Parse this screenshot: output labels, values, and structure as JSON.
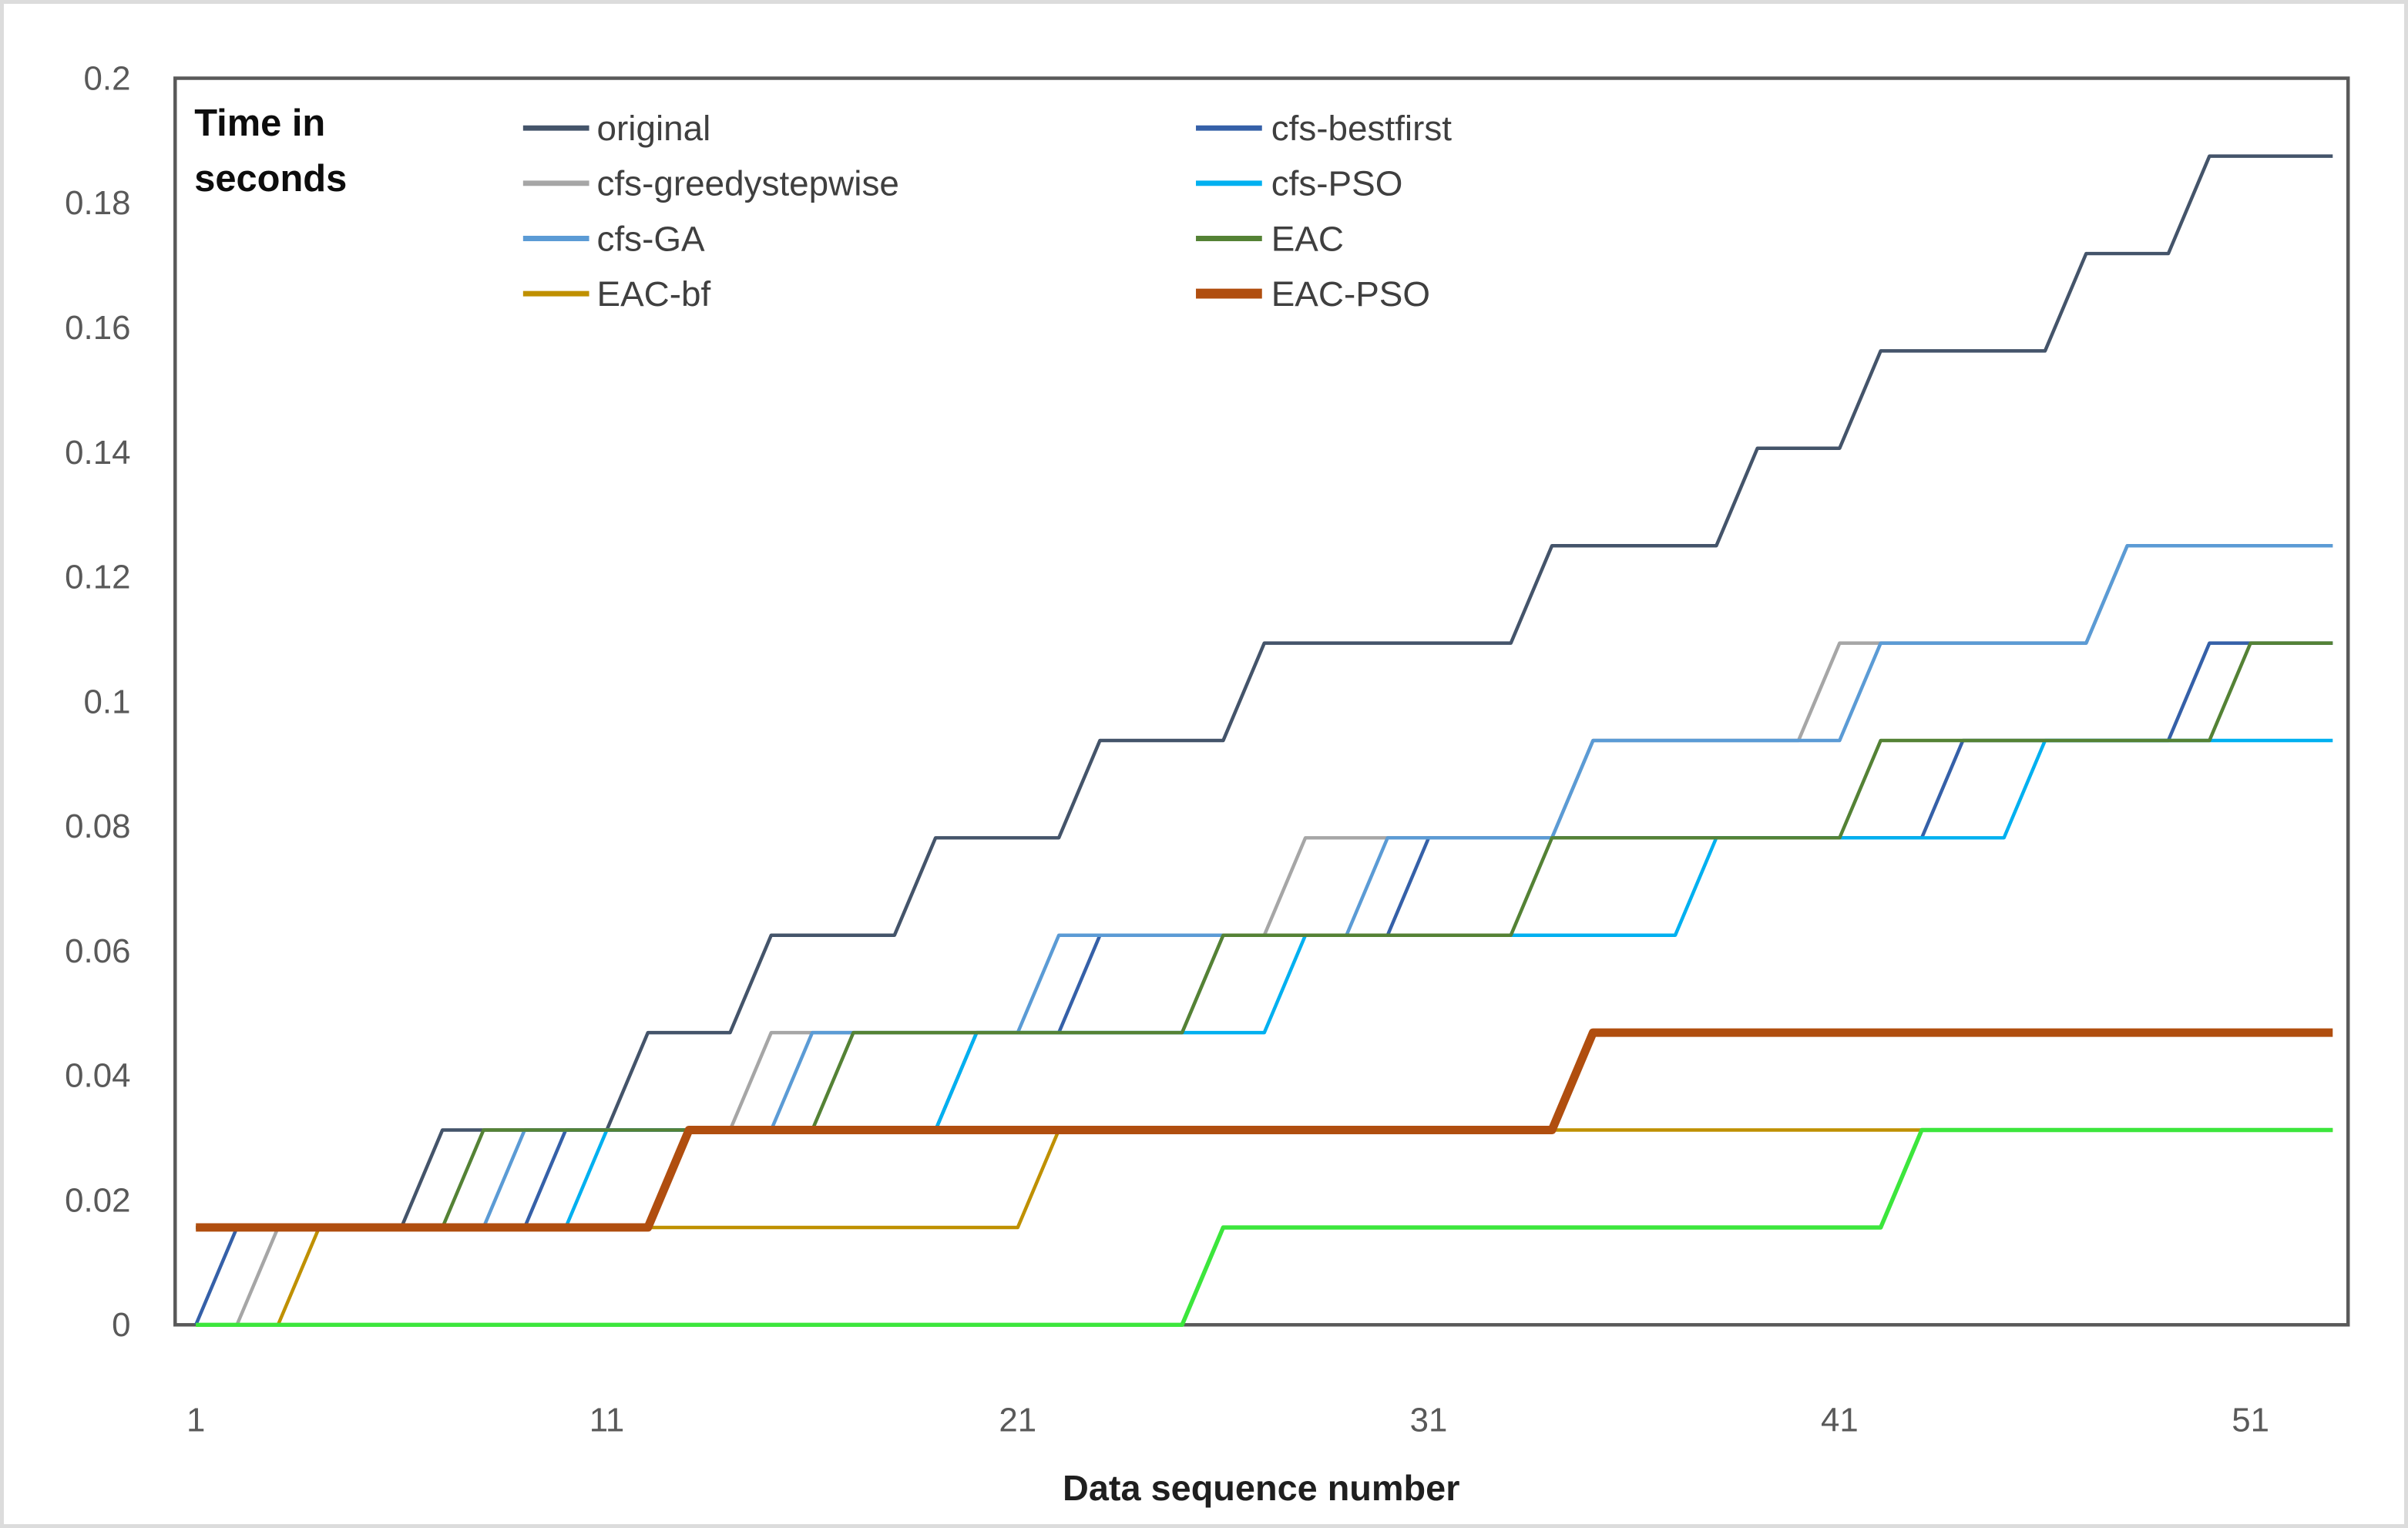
{
  "chart_data": {
    "type": "line",
    "subtype": "stepped-cumulative-time",
    "annotation": {
      "line1": "Time in",
      "line2": "seconds"
    },
    "xlabel": "Data sequence number",
    "ylabel": "",
    "xlim": [
      1,
      53
    ],
    "ylim": [
      0,
      0.2
    ],
    "grid": false,
    "legend_position": "top-left-inside, two columns",
    "x": [
      1,
      2,
      3,
      4,
      5,
      6,
      7,
      8,
      9,
      10,
      11,
      12,
      13,
      14,
      15,
      16,
      17,
      18,
      19,
      20,
      21,
      22,
      23,
      24,
      25,
      26,
      27,
      28,
      29,
      30,
      31,
      32,
      33,
      34,
      35,
      36,
      37,
      38,
      39,
      40,
      41,
      42,
      43,
      44,
      45,
      46,
      47,
      48,
      49,
      50,
      51,
      52,
      53
    ],
    "xticks": [
      {
        "v": 1,
        "label": "1"
      },
      {
        "v": 11,
        "label": "11"
      },
      {
        "v": 21,
        "label": "21"
      },
      {
        "v": 31,
        "label": "31"
      },
      {
        "v": 41,
        "label": "41"
      },
      {
        "v": 51,
        "label": "51"
      }
    ],
    "yticks": [
      {
        "v": 0,
        "label": "0"
      },
      {
        "v": 0.02,
        "label": "0.02"
      },
      {
        "v": 0.04,
        "label": "0.04"
      },
      {
        "v": 0.06,
        "label": "0.06"
      },
      {
        "v": 0.08,
        "label": "0.08"
      },
      {
        "v": 0.1,
        "label": "0.1"
      },
      {
        "v": 0.12,
        "label": "0.12"
      },
      {
        "v": 0.14,
        "label": "0.14"
      },
      {
        "v": 0.16,
        "label": "0.16"
      },
      {
        "v": 0.18,
        "label": "0.18"
      },
      {
        "v": 0.2,
        "label": "0.2"
      }
    ],
    "level_unit_seconds": 0.015625,
    "value_note": "y value of each point = levels[i] * level_unit_seconds (timer-quantized cumulative seconds)",
    "axis_color": "#595959",
    "series": [
      {
        "name": "original",
        "color": "#44546A",
        "stroke_width": 4.5,
        "legend_stroke": 7,
        "in_legend": true,
        "levels": [
          1,
          1,
          1,
          1,
          1,
          1,
          2,
          2,
          2,
          2,
          2,
          3,
          3,
          3,
          4,
          4,
          4,
          4,
          5,
          5,
          5,
          5,
          6,
          6,
          6,
          6,
          7,
          7,
          7,
          7,
          7,
          7,
          7,
          8,
          8,
          8,
          8,
          8,
          9,
          9,
          9,
          10,
          10,
          10,
          10,
          10,
          11,
          11,
          11,
          12,
          12,
          12,
          12
        ]
      },
      {
        "name": "cfs-bestfirst",
        "color": "#3560A8",
        "stroke_width": 4.5,
        "legend_stroke": 7,
        "in_legend": true,
        "levels": [
          0,
          1,
          1,
          1,
          1,
          1,
          1,
          1,
          1,
          2,
          2,
          2,
          2,
          2,
          2,
          2,
          2,
          2,
          2,
          3,
          3,
          3,
          4,
          4,
          4,
          4,
          4,
          4,
          4,
          4,
          5,
          5,
          5,
          5,
          5,
          5,
          5,
          5,
          5,
          5,
          5,
          5,
          5,
          6,
          6,
          6,
          6,
          6,
          6,
          7,
          7,
          7,
          7
        ]
      },
      {
        "name": "cfs-greedystepwise",
        "color": "#A6A6A6",
        "stroke_width": 4.5,
        "legend_stroke": 7,
        "in_legend": true,
        "levels": [
          0,
          0,
          1,
          1,
          1,
          1,
          1,
          1,
          1,
          1,
          1,
          1,
          2,
          2,
          3,
          3,
          3,
          3,
          3,
          3,
          3,
          3,
          3,
          3,
          3,
          4,
          4,
          5,
          5,
          5,
          5,
          5,
          5,
          5,
          6,
          6,
          6,
          6,
          6,
          6,
          7,
          7,
          7,
          7,
          7,
          7,
          7,
          8,
          8,
          8,
          8,
          8,
          8
        ]
      },
      {
        "name": "cfs-PSO",
        "color": "#00B0F0",
        "stroke_width": 4.5,
        "legend_stroke": 7,
        "in_legend": true,
        "levels": [
          1,
          1,
          1,
          1,
          1,
          1,
          1,
          1,
          1,
          1,
          2,
          2,
          2,
          2,
          2,
          2,
          2,
          2,
          2,
          3,
          3,
          3,
          3,
          3,
          3,
          3,
          3,
          4,
          4,
          4,
          4,
          4,
          4,
          4,
          4,
          4,
          4,
          5,
          5,
          5,
          5,
          5,
          5,
          5,
          5,
          6,
          6,
          6,
          6,
          6,
          6,
          6,
          6
        ]
      },
      {
        "name": "cfs-GA",
        "color": "#5B9BD5",
        "stroke_width": 4.5,
        "legend_stroke": 7,
        "in_legend": true,
        "levels": [
          1,
          1,
          1,
          1,
          1,
          1,
          1,
          1,
          2,
          2,
          2,
          2,
          2,
          2,
          2,
          3,
          3,
          3,
          3,
          3,
          3,
          4,
          4,
          4,
          4,
          4,
          4,
          4,
          4,
          5,
          5,
          5,
          5,
          5,
          6,
          6,
          6,
          6,
          6,
          6,
          6,
          7,
          7,
          7,
          7,
          7,
          7,
          8,
          8,
          8,
          8,
          8,
          8
        ]
      },
      {
        "name": "EAC",
        "color": "#548235",
        "stroke_width": 4.5,
        "legend_stroke": 7,
        "in_legend": true,
        "levels": [
          1,
          1,
          1,
          1,
          1,
          1,
          1,
          2,
          2,
          2,
          2,
          2,
          2,
          2,
          2,
          2,
          3,
          3,
          3,
          3,
          3,
          3,
          3,
          3,
          3,
          4,
          4,
          4,
          4,
          4,
          4,
          4,
          4,
          5,
          5,
          5,
          5,
          5,
          5,
          5,
          5,
          6,
          6,
          6,
          6,
          6,
          6,
          6,
          6,
          6,
          7,
          7,
          7
        ]
      },
      {
        "name": "EAC-bf",
        "color": "#BF9000",
        "stroke_width": 4.5,
        "legend_stroke": 7,
        "in_legend": true,
        "levels": [
          0,
          0,
          0,
          1,
          1,
          1,
          1,
          1,
          1,
          1,
          1,
          1,
          1,
          1,
          1,
          1,
          1,
          1,
          1,
          1,
          1,
          2,
          2,
          2,
          2,
          2,
          2,
          2,
          2,
          2,
          2,
          2,
          2,
          2,
          2,
          2,
          2,
          2,
          2,
          2,
          2,
          2,
          2,
          2,
          2,
          2,
          2,
          2,
          2,
          2,
          2,
          2,
          2
        ]
      },
      {
        "name": "EAC-PSO",
        "color": "#B04E0F",
        "stroke_width": 11,
        "legend_stroke": 13,
        "in_legend": true,
        "levels": [
          1,
          1,
          1,
          1,
          1,
          1,
          1,
          1,
          1,
          1,
          1,
          1,
          2,
          2,
          2,
          2,
          2,
          2,
          2,
          2,
          2,
          2,
          2,
          2,
          2,
          2,
          2,
          2,
          2,
          2,
          2,
          2,
          2,
          2,
          3,
          3,
          3,
          3,
          3,
          3,
          3,
          3,
          3,
          3,
          3,
          3,
          3,
          3,
          3,
          3,
          3,
          3,
          3
        ]
      },
      {
        "name": "unlabeled-green",
        "color": "#3CE63C",
        "stroke_width": 5.5,
        "legend_stroke": 7,
        "in_legend": false,
        "levels": [
          0,
          0,
          0,
          0,
          0,
          0,
          0,
          0,
          0,
          0,
          0,
          0,
          0,
          0,
          0,
          0,
          0,
          0,
          0,
          0,
          0,
          0,
          0,
          0,
          0,
          1,
          1,
          1,
          1,
          1,
          1,
          1,
          1,
          1,
          1,
          1,
          1,
          1,
          1,
          1,
          1,
          1,
          2,
          2,
          2,
          2,
          2,
          2,
          2,
          2,
          2,
          2,
          2
        ]
      }
    ],
    "legend_columns": [
      [
        "original",
        "cfs-greedystepwise",
        "cfs-GA",
        "EAC-bf"
      ],
      [
        "cfs-bestfirst",
        "cfs-PSO",
        "EAC",
        "EAC-PSO"
      ]
    ]
  },
  "frame": {
    "plot_border_color": "#595959",
    "outer_border_color": "#dcdcdc",
    "background": "#ffffff"
  }
}
